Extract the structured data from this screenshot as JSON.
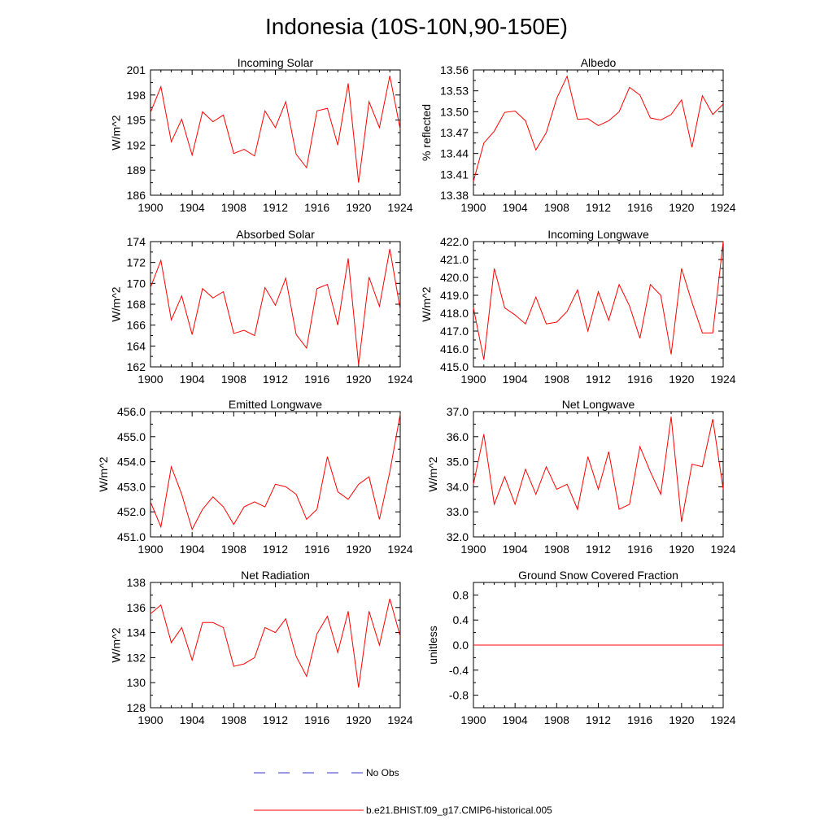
{
  "figure_title": "Indonesia (10S-10N,90-150E)",
  "colors": {
    "model": "#ff0000",
    "obs": "#3333cc",
    "axis": "#000000"
  },
  "legend": [
    {
      "label": "No Obs",
      "style": "dashed",
      "color": "#3333cc"
    },
    {
      "label": "b.e21.BHIST.f09_g17.CMIP6-historical.005",
      "style": "solid",
      "color": "#ff0000"
    }
  ],
  "chart_data": [
    {
      "type": "line",
      "title": "Incoming Solar",
      "ylabel": "W/m^2",
      "xlim": [
        1900,
        1924
      ],
      "ylim": [
        186,
        201
      ],
      "xticks": [
        1900,
        1904,
        1908,
        1912,
        1916,
        1920,
        1924
      ],
      "yticks": [
        186,
        189,
        192,
        195,
        198,
        201
      ],
      "ytick_labels": [
        "186",
        "189",
        "192",
        "195",
        "198",
        "201"
      ],
      "x": [
        1900,
        1901,
        1902,
        1903,
        1904,
        1905,
        1906,
        1907,
        1908,
        1909,
        1910,
        1911,
        1912,
        1913,
        1914,
        1915,
        1916,
        1917,
        1918,
        1919,
        1920,
        1921,
        1922,
        1923,
        1924
      ],
      "series": [
        {
          "name": "b.e21.BHIST.f09_g17.CMIP6-historical.005",
          "values": [
            195.9,
            199.0,
            192.4,
            195.1,
            190.8,
            196.0,
            194.8,
            195.6,
            191.0,
            191.5,
            190.7,
            196.1,
            194.1,
            197.2,
            190.9,
            189.3,
            196.1,
            196.4,
            192.0,
            199.4,
            187.5,
            197.2,
            194.1,
            200.3,
            193.9
          ]
        }
      ]
    },
    {
      "type": "line",
      "title": "Albedo",
      "ylabel": "% reflected",
      "xlim": [
        1900,
        1924
      ],
      "ylim": [
        13.38,
        13.56
      ],
      "xticks": [
        1900,
        1904,
        1908,
        1912,
        1916,
        1920,
        1924
      ],
      "yticks": [
        13.38,
        13.41,
        13.44,
        13.47,
        13.5,
        13.53,
        13.56
      ],
      "ytick_labels": [
        "13.38",
        "13.41",
        "13.44",
        "13.47",
        "13.50",
        "13.53",
        "13.56"
      ],
      "x": [
        1900,
        1901,
        1902,
        1903,
        1904,
        1905,
        1906,
        1907,
        1908,
        1909,
        1910,
        1911,
        1912,
        1913,
        1914,
        1915,
        1916,
        1917,
        1918,
        1919,
        1920,
        1921,
        1922,
        1923,
        1924
      ],
      "series": [
        {
          "name": "b.e21.BHIST.f09_g17.CMIP6-historical.005",
          "values": [
            13.4,
            13.455,
            13.472,
            13.499,
            13.501,
            13.487,
            13.445,
            13.47,
            13.519,
            13.551,
            13.489,
            13.49,
            13.48,
            13.487,
            13.5,
            13.535,
            13.524,
            13.491,
            13.488,
            13.496,
            13.517,
            13.449,
            13.523,
            13.496,
            13.511
          ]
        }
      ]
    },
    {
      "type": "line",
      "title": "Absorbed Solar",
      "ylabel": "W/m^2",
      "xlim": [
        1900,
        1924
      ],
      "ylim": [
        162,
        174
      ],
      "xticks": [
        1900,
        1904,
        1908,
        1912,
        1916,
        1920,
        1924
      ],
      "yticks": [
        162,
        164,
        166,
        168,
        170,
        172,
        174
      ],
      "ytick_labels": [
        "162",
        "164",
        "166",
        "168",
        "170",
        "172",
        "174"
      ],
      "x": [
        1900,
        1901,
        1902,
        1903,
        1904,
        1905,
        1906,
        1907,
        1908,
        1909,
        1910,
        1911,
        1912,
        1913,
        1914,
        1915,
        1916,
        1917,
        1918,
        1919,
        1920,
        1921,
        1922,
        1923,
        1924
      ],
      "series": [
        {
          "name": "b.e21.BHIST.f09_g17.CMIP6-historical.005",
          "values": [
            169.6,
            172.2,
            166.5,
            168.8,
            165.1,
            169.5,
            168.6,
            169.2,
            165.2,
            165.5,
            165.0,
            169.6,
            167.9,
            170.5,
            165.1,
            163.8,
            169.5,
            169.9,
            166.0,
            172.4,
            162.2,
            170.6,
            167.8,
            173.3,
            167.5
          ]
        }
      ]
    },
    {
      "type": "line",
      "title": "Incoming Longwave",
      "ylabel": "W/m^2",
      "xlim": [
        1900,
        1924
      ],
      "ylim": [
        415.0,
        422.0
      ],
      "xticks": [
        1900,
        1904,
        1908,
        1912,
        1916,
        1920,
        1924
      ],
      "yticks": [
        415,
        416,
        417,
        418,
        419,
        420,
        421,
        422
      ],
      "ytick_labels": [
        "415.0",
        "416.0",
        "417.0",
        "418.0",
        "419.0",
        "420.0",
        "421.0",
        "422.0"
      ],
      "x": [
        1900,
        1901,
        1902,
        1903,
        1904,
        1905,
        1906,
        1907,
        1908,
        1909,
        1910,
        1911,
        1912,
        1913,
        1914,
        1915,
        1916,
        1917,
        1918,
        1919,
        1920,
        1921,
        1922,
        1923,
        1924
      ],
      "series": [
        {
          "name": "b.e21.BHIST.f09_g17.CMIP6-historical.005",
          "values": [
            418.3,
            415.4,
            420.5,
            418.3,
            417.9,
            417.4,
            418.9,
            417.4,
            417.5,
            418.1,
            419.3,
            417.0,
            419.2,
            417.6,
            419.6,
            418.4,
            416.6,
            419.6,
            419.0,
            415.7,
            420.5,
            418.6,
            416.9,
            416.9,
            422.0
          ]
        }
      ]
    },
    {
      "type": "line",
      "title": "Emitted Longwave",
      "ylabel": "W/m^2",
      "xlim": [
        1900,
        1924
      ],
      "ylim": [
        451.0,
        456.0
      ],
      "xticks": [
        1900,
        1904,
        1908,
        1912,
        1916,
        1920,
        1924
      ],
      "yticks": [
        451,
        452,
        453,
        454,
        455,
        456
      ],
      "ytick_labels": [
        "451.0",
        "452.0",
        "453.0",
        "454.0",
        "455.0",
        "456.0"
      ],
      "x": [
        1900,
        1901,
        1902,
        1903,
        1904,
        1905,
        1906,
        1907,
        1908,
        1909,
        1910,
        1911,
        1912,
        1913,
        1914,
        1915,
        1916,
        1917,
        1918,
        1919,
        1920,
        1921,
        1922,
        1923,
        1924
      ],
      "series": [
        {
          "name": "b.e21.BHIST.f09_g17.CMIP6-historical.005",
          "values": [
            452.4,
            451.4,
            453.8,
            452.7,
            451.3,
            452.1,
            452.6,
            452.2,
            451.5,
            452.2,
            452.4,
            452.2,
            453.1,
            453.0,
            452.7,
            451.7,
            452.1,
            454.2,
            452.8,
            452.5,
            453.1,
            453.4,
            451.7,
            453.6,
            455.9
          ]
        }
      ]
    },
    {
      "type": "line",
      "title": "Net Longwave",
      "ylabel": "W/m^2",
      "xlim": [
        1900,
        1924
      ],
      "ylim": [
        32.0,
        37.0
      ],
      "xticks": [
        1900,
        1904,
        1908,
        1912,
        1916,
        1920,
        1924
      ],
      "yticks": [
        32,
        33,
        34,
        35,
        36,
        37
      ],
      "ytick_labels": [
        "32.0",
        "33.0",
        "34.0",
        "35.0",
        "36.0",
        "37.0"
      ],
      "x": [
        1900,
        1901,
        1902,
        1903,
        1904,
        1905,
        1906,
        1907,
        1908,
        1909,
        1910,
        1911,
        1912,
        1913,
        1914,
        1915,
        1916,
        1917,
        1918,
        1919,
        1920,
        1921,
        1922,
        1923,
        1924
      ],
      "series": [
        {
          "name": "b.e21.BHIST.f09_g17.CMIP6-historical.005",
          "values": [
            34.1,
            36.1,
            33.3,
            34.4,
            33.3,
            34.7,
            33.7,
            34.8,
            33.9,
            34.1,
            33.1,
            35.2,
            33.9,
            35.4,
            33.1,
            33.3,
            35.6,
            34.6,
            33.7,
            36.8,
            32.6,
            34.9,
            34.8,
            36.7,
            33.9
          ]
        }
      ]
    },
    {
      "type": "line",
      "title": "Net Radiation",
      "ylabel": "W/m^2",
      "xlim": [
        1900,
        1924
      ],
      "ylim": [
        128,
        138
      ],
      "xticks": [
        1900,
        1904,
        1908,
        1912,
        1916,
        1920,
        1924
      ],
      "yticks": [
        128,
        130,
        132,
        134,
        136,
        138
      ],
      "ytick_labels": [
        "128",
        "130",
        "132",
        "134",
        "136",
        "138"
      ],
      "x": [
        1900,
        1901,
        1902,
        1903,
        1904,
        1905,
        1906,
        1907,
        1908,
        1909,
        1910,
        1911,
        1912,
        1913,
        1914,
        1915,
        1916,
        1917,
        1918,
        1919,
        1920,
        1921,
        1922,
        1923,
        1924
      ],
      "series": [
        {
          "name": "b.e21.BHIST.f09_g17.CMIP6-historical.005",
          "values": [
            135.5,
            136.2,
            133.2,
            134.4,
            131.8,
            134.8,
            134.8,
            134.4,
            131.3,
            131.5,
            132.0,
            134.4,
            134.0,
            135.1,
            132.1,
            130.5,
            133.9,
            135.3,
            132.4,
            135.7,
            129.6,
            135.7,
            133.0,
            136.7,
            133.7
          ]
        }
      ]
    },
    {
      "type": "line",
      "title": "Ground Snow Covered Fraction",
      "ylabel": "unitless",
      "xlim": [
        1900,
        1924
      ],
      "ylim": [
        -1.0,
        1.0
      ],
      "xticks": [
        1900,
        1904,
        1908,
        1912,
        1916,
        1920,
        1924
      ],
      "yticks": [
        -0.8,
        -0.4,
        0.0,
        0.4,
        0.8
      ],
      "ytick_labels": [
        "-0.8",
        "-0.4",
        "0.0",
        "0.4",
        "0.8"
      ],
      "x": [
        1900,
        1901,
        1902,
        1903,
        1904,
        1905,
        1906,
        1907,
        1908,
        1909,
        1910,
        1911,
        1912,
        1913,
        1914,
        1915,
        1916,
        1917,
        1918,
        1919,
        1920,
        1921,
        1922,
        1923,
        1924
      ],
      "series": [
        {
          "name": "b.e21.BHIST.f09_g17.CMIP6-historical.005",
          "values": [
            0,
            0,
            0,
            0,
            0,
            0,
            0,
            0,
            0,
            0,
            0,
            0,
            0,
            0,
            0,
            0,
            0,
            0,
            0,
            0,
            0,
            0,
            0,
            0,
            0
          ]
        }
      ]
    }
  ]
}
